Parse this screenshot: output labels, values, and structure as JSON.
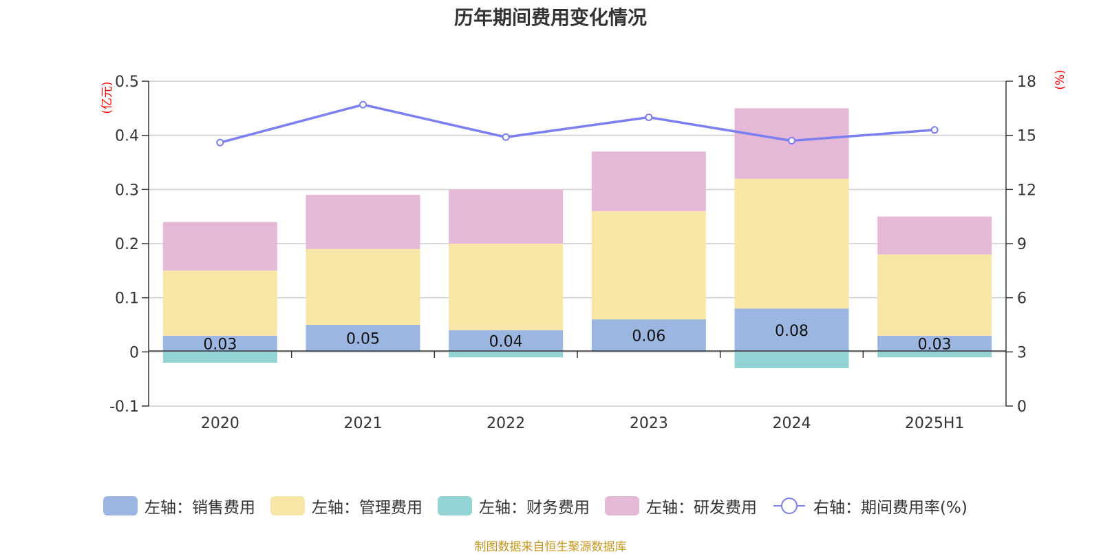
{
  "title": "历年期间费用变化情况",
  "left_unit": "(亿元)",
  "right_unit": "(%)",
  "source": "制图数据来自恒生聚源数据库",
  "colors": {
    "sales": "#9bb6e0",
    "admin": "#f7e6a6",
    "finance": "#94d3d3",
    "rd": "#e6b8d8",
    "rate": "#7b7ff0"
  },
  "chart_data": {
    "type": "bar",
    "stacked": true,
    "categories": [
      "2020",
      "2021",
      "2022",
      "2023",
      "2024",
      "2025H1"
    ],
    "left_axis": {
      "min": -0.1,
      "max": 0.5,
      "ticks": [
        "-0.1",
        "0",
        "0.1",
        "0.2",
        "0.3",
        "0.4",
        "0.5"
      ]
    },
    "right_axis": {
      "min": 0,
      "max": 18,
      "ticks": [
        "0",
        "3",
        "6",
        "9",
        "12",
        "15",
        "18"
      ]
    },
    "series": [
      {
        "key": "sales",
        "name": "左轴：销售费用",
        "axis": "left",
        "type": "bar",
        "values": [
          0.03,
          0.05,
          0.04,
          0.06,
          0.08,
          0.03
        ],
        "labels": [
          "0.03",
          "0.05",
          "0.04",
          "0.06",
          "0.08",
          "0.03"
        ]
      },
      {
        "key": "admin",
        "name": "左轴：管理费用",
        "axis": "left",
        "type": "bar",
        "values": [
          0.12,
          0.14,
          0.16,
          0.2,
          0.24,
          0.15
        ]
      },
      {
        "key": "finance",
        "name": "左轴：财务费用",
        "axis": "left",
        "type": "bar",
        "values": [
          -0.02,
          0.0,
          -0.01,
          0.0,
          -0.03,
          -0.01
        ]
      },
      {
        "key": "rd",
        "name": "左轴：研发费用",
        "axis": "left",
        "type": "bar",
        "values": [
          0.09,
          0.1,
          0.1,
          0.11,
          0.13,
          0.07
        ]
      },
      {
        "key": "rate",
        "name": "右轴：期间费用率(%)",
        "axis": "right",
        "type": "line",
        "values": [
          14.6,
          16.7,
          14.9,
          16.0,
          14.7,
          15.3
        ]
      }
    ],
    "grid": true,
    "legend_position": "bottom"
  }
}
